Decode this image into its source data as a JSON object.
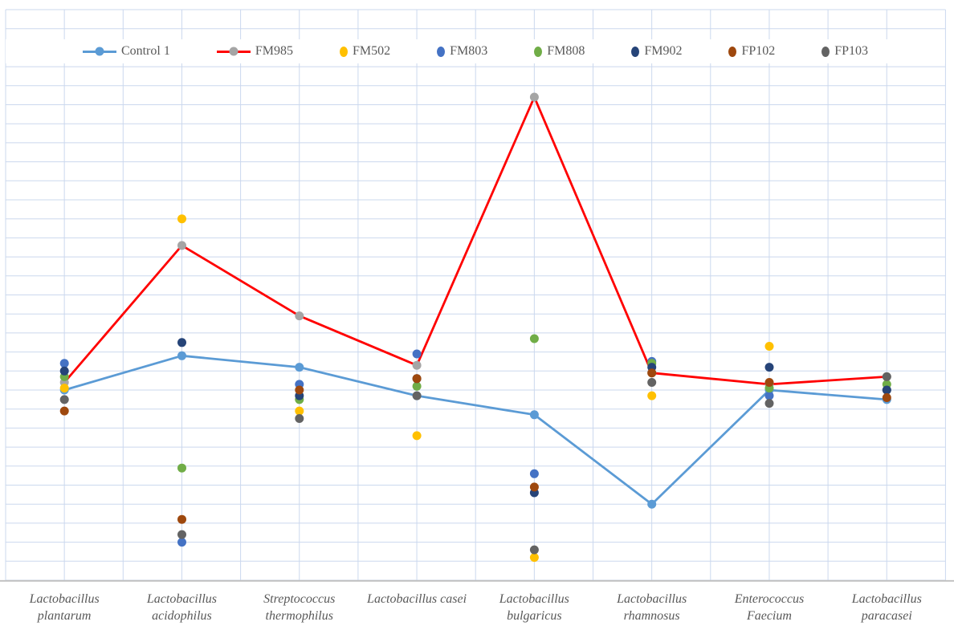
{
  "colors": {
    "background": "#FFFFFF",
    "gridline": "#CBD8EE",
    "axis_line": "#BFBFBF",
    "text": "#595959",
    "control1_blue": "#5B9BD5",
    "fm985_red": "#FF0000",
    "fm985_marker_gray": "#A5A5A5",
    "fm502_gold": "#FFC000",
    "fm803_blue": "#4472C4",
    "fm808_green": "#70AD47",
    "fm902_navy": "#264478",
    "fp102_brown": "#9E480E",
    "fp103_gray": "#636363"
  },
  "chart_data": {
    "type": "line",
    "title": "",
    "legend_position": "top",
    "grid": {
      "horizontal_rows": 30,
      "vertical_cols": 16,
      "grid_on": true
    },
    "ylim": [
      0,
      30
    ],
    "y_axis_labels_visible": false,
    "categories": [
      {
        "label": "Lactobacillus plantarum",
        "lines": [
          "Lactobacillus",
          "plantarum"
        ]
      },
      {
        "label": "Lactobacillus acidophilus",
        "lines": [
          "Lactobacillus",
          "acidophilus"
        ]
      },
      {
        "label": "Streptococcus thermophilus",
        "lines": [
          "Streptococcus",
          "thermophilus"
        ]
      },
      {
        "label": "Lactobacillus casei",
        "lines": [
          "Lactobacillus casei"
        ]
      },
      {
        "label": "Lactobacillus bulgaricus",
        "lines": [
          "Lactobacillus",
          "bulgaricus"
        ]
      },
      {
        "label": "Lactobacillus rhamnosus",
        "lines": [
          "Lactobacillus",
          "rhamnosus"
        ]
      },
      {
        "label": "Enterococcus Faecium",
        "lines": [
          "Enterococcus",
          "Faecium"
        ]
      },
      {
        "label": "Lactobacillus paracasei",
        "lines": [
          "Lactobacillus",
          "paracasei"
        ]
      }
    ],
    "series": [
      {
        "name": "Control 1",
        "type": "line",
        "line_color": "#5B9BD5",
        "marker_color": "#5B9BD5",
        "values": [
          10.0,
          11.8,
          11.2,
          9.7,
          8.7,
          4.0,
          10.0,
          9.5
        ]
      },
      {
        "name": "FM985",
        "type": "line",
        "line_color": "#FF0000",
        "marker_color": "#A5A5A5",
        "values": [
          10.4,
          17.6,
          13.9,
          11.3,
          25.4,
          10.9,
          10.3,
          10.7
        ]
      },
      {
        "name": "FM502",
        "type": "scatter",
        "marker_color": "#FFC000",
        "values": [
          10.1,
          19.0,
          8.9,
          7.6,
          1.2,
          9.7,
          12.3,
          10.0
        ]
      },
      {
        "name": "FM803",
        "type": "scatter",
        "marker_color": "#4472C4",
        "values": [
          11.4,
          2.0,
          10.3,
          11.9,
          5.6,
          11.5,
          9.7,
          10.0
        ]
      },
      {
        "name": "FM808",
        "type": "scatter",
        "marker_color": "#70AD47",
        "values": [
          10.7,
          5.9,
          9.5,
          10.2,
          12.7,
          11.4,
          10.1,
          10.3
        ]
      },
      {
        "name": "FM902",
        "type": "scatter",
        "marker_color": "#264478",
        "values": [
          11.0,
          12.5,
          9.7,
          10.6,
          4.6,
          11.2,
          11.2,
          10.0
        ]
      },
      {
        "name": "FP102",
        "type": "scatter",
        "marker_color": "#9E480E",
        "values": [
          8.9,
          3.2,
          10.0,
          10.6,
          4.9,
          10.9,
          10.4,
          9.6
        ]
      },
      {
        "name": "FP103",
        "type": "scatter",
        "marker_color": "#636363",
        "values": [
          9.5,
          2.4,
          8.5,
          9.7,
          1.6,
          10.4,
          9.3,
          10.7
        ]
      }
    ]
  }
}
